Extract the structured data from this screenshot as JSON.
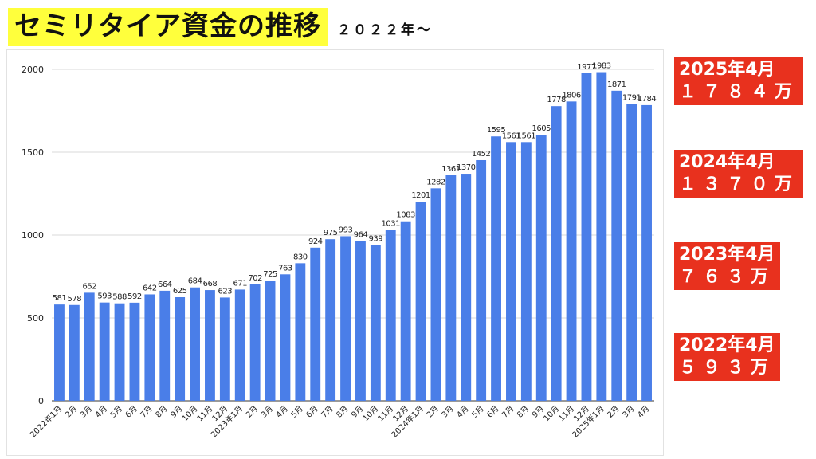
{
  "title": "セミリタイア資金の推移",
  "subtitle": "２０２２年〜",
  "colors": {
    "bar": "#4a7ee8",
    "annotation_bg": "#e8311e",
    "title_bg": "#ffff3c"
  },
  "annotations": [
    {
      "line1": "2025年4月",
      "line2": "１７８４万"
    },
    {
      "line1": "2024年4月",
      "line2": "１３７０万"
    },
    {
      "line1": "2023年4月",
      "line2": "７６３万"
    },
    {
      "line1": "2022年4月",
      "line2": "５９３万"
    }
  ],
  "chart_data": {
    "type": "bar",
    "title": "",
    "xlabel": "",
    "ylabel": "",
    "ylim": [
      0,
      2000
    ],
    "yticks": [
      0,
      500,
      1000,
      1500,
      2000
    ],
    "grid": true,
    "categories": [
      "2022年1月",
      "2月",
      "3月",
      "4月",
      "5月",
      "6月",
      "7月",
      "8月",
      "9月",
      "10月",
      "11月",
      "12月",
      "2023年1月",
      "2月",
      "3月",
      "4月",
      "5月",
      "6月",
      "7月",
      "8月",
      "9月",
      "10月",
      "11月",
      "12月",
      "2024年1月",
      "2月",
      "3月",
      "4月",
      "5月",
      "6月",
      "7月",
      "8月",
      "9月",
      "10月",
      "11月",
      "12月",
      "2025年1月",
      "2月",
      "3月",
      "4月"
    ],
    "values": [
      581,
      578,
      652,
      593,
      588,
      592,
      642,
      664,
      625,
      684,
      668,
      623,
      671,
      702,
      725,
      763,
      830,
      924,
      975,
      993,
      964,
      939,
      1031,
      1083,
      1201,
      1282,
      1361,
      1370,
      1452,
      1595,
      1561,
      1561,
      1605,
      1778,
      1806,
      1977,
      1983,
      1871,
      1791,
      1784
    ]
  }
}
